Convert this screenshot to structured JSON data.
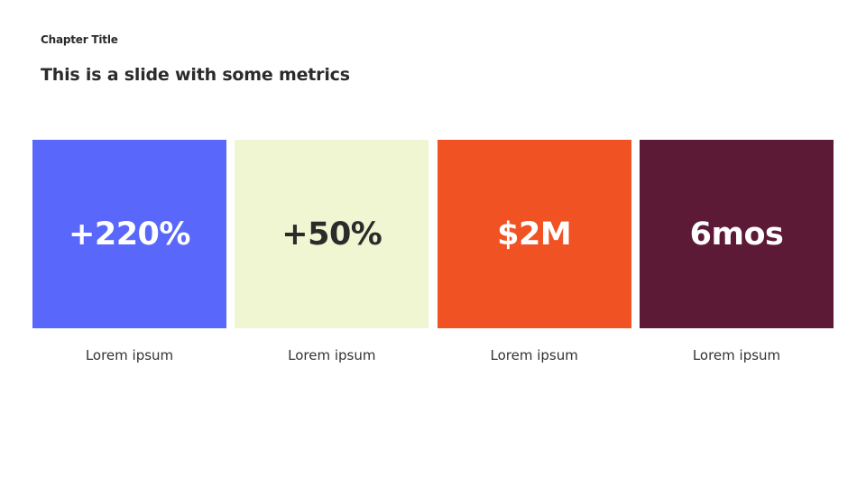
{
  "slide": {
    "chapter_title": "Chapter Title",
    "title": "This is a slide with some metrics"
  },
  "metrics": [
    {
      "value": "+220%",
      "label": "Lorem ipsum",
      "bg_color": "#5968fb",
      "text_color": "#ffffff"
    },
    {
      "value": "+50%",
      "label": "Lorem ipsum",
      "bg_color": "#f0f5d2",
      "text_color": "#2b2b2b"
    },
    {
      "value": "$2M",
      "label": "Lorem ipsum",
      "bg_color": "#f05224",
      "text_color": "#ffffff"
    },
    {
      "value": "6mos",
      "label": "Lorem ipsum",
      "bg_color": "#5c1a36",
      "text_color": "#ffffff"
    }
  ]
}
